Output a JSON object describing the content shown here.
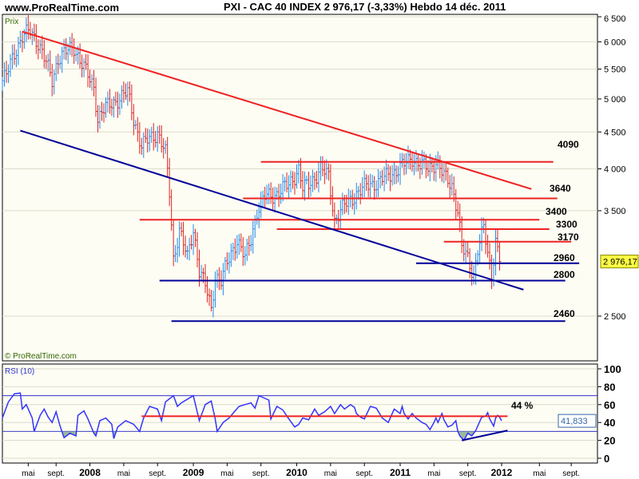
{
  "header": {
    "site": "www.ProRealTime.com",
    "title": "PXI - CAC 40 INDEX    2 976,17 (-3,33%)    Hebdo  14 déc. 2011"
  },
  "chart_data": [
    {
      "type": "line",
      "title": "Prix",
      "scale": "log",
      "ylim": [
        2100,
        6600
      ],
      "yticks": [
        {
          "v": 6500,
          "label": "6 500"
        },
        {
          "v": 6000,
          "label": "6 000"
        },
        {
          "v": 5500,
          "label": "5 500"
        },
        {
          "v": 5000,
          "label": "5 000"
        },
        {
          "v": 4500,
          "label": "4 500"
        },
        {
          "v": 4000,
          "label": "4 000"
        },
        {
          "v": 3500,
          "label": "3 500"
        },
        {
          "v": 2500,
          "label": "2 500"
        }
      ],
      "x_unit": "weeks from first bar",
      "price_path": [
        [
          0,
          5300
        ],
        [
          2,
          5380
        ],
        [
          6,
          5800
        ],
        [
          10,
          6100
        ],
        [
          14,
          6200
        ],
        [
          18,
          6000
        ],
        [
          22,
          5600
        ],
        [
          25,
          5300
        ],
        [
          28,
          5700
        ],
        [
          32,
          5800
        ],
        [
          36,
          5900
        ],
        [
          40,
          5600
        ],
        [
          44,
          5300
        ],
        [
          46,
          5200
        ],
        [
          48,
          4700
        ],
        [
          50,
          4800
        ],
        [
          54,
          4900
        ],
        [
          58,
          5000
        ],
        [
          63,
          5100
        ],
        [
          66,
          4700
        ],
        [
          70,
          4300
        ],
        [
          74,
          4400
        ],
        [
          78,
          4500
        ],
        [
          82,
          4200
        ],
        [
          84,
          3700
        ],
        [
          86,
          3000
        ],
        [
          89,
          3300
        ],
        [
          93,
          3000
        ],
        [
          96,
          3300
        ],
        [
          99,
          2900
        ],
        [
          102,
          2750
        ],
        [
          105,
          2550
        ],
        [
          107,
          2850
        ],
        [
          110,
          2800
        ],
        [
          114,
          3000
        ],
        [
          118,
          3200
        ],
        [
          122,
          3000
        ],
        [
          125,
          3200
        ],
        [
          128,
          3500
        ],
        [
          132,
          3650
        ],
        [
          138,
          3700
        ],
        [
          144,
          3800
        ],
        [
          149,
          4000
        ],
        [
          151,
          3750
        ],
        [
          154,
          3800
        ],
        [
          160,
          4000
        ],
        [
          164,
          3900
        ],
        [
          167,
          3400
        ],
        [
          170,
          3500
        ],
        [
          174,
          3600
        ],
        [
          178,
          3700
        ],
        [
          184,
          3800
        ],
        [
          190,
          3850
        ],
        [
          196,
          3950
        ],
        [
          202,
          4050
        ],
        [
          206,
          4150
        ],
        [
          210,
          4050
        ],
        [
          214,
          4000
        ],
        [
          218,
          4100
        ],
        [
          222,
          3900
        ],
        [
          226,
          3800
        ],
        [
          229,
          3500
        ],
        [
          231,
          3100
        ],
        [
          234,
          3000
        ],
        [
          237,
          2850
        ],
        [
          239,
          3100
        ],
        [
          242,
          3300
        ],
        [
          244,
          3050
        ],
        [
          246,
          2850
        ],
        [
          248,
          3200
        ],
        [
          250,
          2976
        ]
      ],
      "last_value": "2 976,17",
      "levels": [
        {
          "v": 4090,
          "label": "4090",
          "color": "#ee2222",
          "from": 130,
          "to": 277
        },
        {
          "v": 3640,
          "label": "3640",
          "color": "#ee2222",
          "from": 121,
          "to": 279
        },
        {
          "v": 3400,
          "label": "3400",
          "color": "#ee2222",
          "from": 69,
          "to": 270
        },
        {
          "v": 3300,
          "label": "3300",
          "color": "#ee2222",
          "from": 138,
          "to": 275
        },
        {
          "v": 3170,
          "label": "3170",
          "color": "#ee2222",
          "from": 222,
          "to": 286
        },
        {
          "v": 2960,
          "label": "2960",
          "color": "#000099",
          "from": 208,
          "to": 290
        },
        {
          "v": 2800,
          "label": "2800",
          "color": "#000099",
          "from": 79,
          "to": 283
        },
        {
          "v": 2460,
          "label": "2460",
          "color": "#000099",
          "from": 85,
          "to": 283
        }
      ],
      "trendlines": [
        {
          "color": "#ee2222",
          "from": [
            10,
            6200
          ],
          "to": [
            266,
            3750
          ]
        },
        {
          "color": "#000099",
          "from": [
            9,
            4520
          ],
          "to": [
            262,
            2720
          ]
        }
      ],
      "copyright": "© ProRealTime.com"
    },
    {
      "type": "line",
      "title": "RSI (10)",
      "ylim": [
        0,
        100
      ],
      "yticks": [
        {
          "v": 100,
          "label": "100"
        },
        {
          "v": 80,
          "label": "80"
        },
        {
          "v": 60,
          "label": "60"
        },
        {
          "v": 40,
          "label": "40"
        },
        {
          "v": 20,
          "label": "20"
        },
        {
          "v": 0,
          "label": "0"
        }
      ],
      "bands": [
        70,
        30
      ],
      "values": [
        [
          0,
          45
        ],
        [
          3,
          63
        ],
        [
          6,
          72
        ],
        [
          9,
          73
        ],
        [
          10,
          55
        ],
        [
          12,
          60
        ],
        [
          15,
          45
        ],
        [
          16,
          30
        ],
        [
          19,
          48
        ],
        [
          21,
          55
        ],
        [
          23,
          46
        ],
        [
          25,
          40
        ],
        [
          27,
          52
        ],
        [
          29,
          36
        ],
        [
          31,
          23
        ],
        [
          34,
          28
        ],
        [
          37,
          25
        ],
        [
          38,
          48
        ],
        [
          41,
          53
        ],
        [
          43,
          44
        ],
        [
          46,
          28
        ],
        [
          47,
          25
        ],
        [
          49,
          42
        ],
        [
          52,
          45
        ],
        [
          55,
          38
        ],
        [
          56,
          22
        ],
        [
          58,
          35
        ],
        [
          62,
          42
        ],
        [
          66,
          38
        ],
        [
          69,
          30
        ],
        [
          71,
          45
        ],
        [
          74,
          58
        ],
        [
          78,
          55
        ],
        [
          80,
          42
        ],
        [
          82,
          63
        ],
        [
          86,
          70
        ],
        [
          88,
          58
        ],
        [
          90,
          62
        ],
        [
          93,
          66
        ],
        [
          96,
          70
        ],
        [
          99,
          42
        ],
        [
          102,
          60
        ],
        [
          105,
          64
        ],
        [
          107,
          44
        ],
        [
          108,
          30
        ],
        [
          111,
          40
        ],
        [
          114,
          45
        ],
        [
          117,
          53
        ],
        [
          119,
          58
        ],
        [
          122,
          60
        ],
        [
          125,
          62
        ],
        [
          127,
          56
        ],
        [
          129,
          70
        ],
        [
          134,
          65
        ],
        [
          135,
          44
        ],
        [
          138,
          58
        ],
        [
          141,
          54
        ],
        [
          144,
          44
        ],
        [
          147,
          35
        ],
        [
          149,
          38
        ],
        [
          151,
          45
        ],
        [
          154,
          43
        ],
        [
          157,
          55
        ],
        [
          159,
          48
        ],
        [
          162,
          52
        ],
        [
          165,
          58
        ],
        [
          167,
          50
        ],
        [
          170,
          60
        ],
        [
          172,
          55
        ],
        [
          175,
          60
        ],
        [
          177,
          57
        ],
        [
          178,
          50
        ],
        [
          180,
          46
        ],
        [
          182,
          44
        ],
        [
          185,
          58
        ],
        [
          188,
          56
        ],
        [
          191,
          45
        ],
        [
          194,
          40
        ],
        [
          197,
          55
        ],
        [
          200,
          50
        ],
        [
          201,
          58
        ],
        [
          202,
          50
        ],
        [
          204,
          44
        ],
        [
          206,
          50
        ],
        [
          208,
          45
        ],
        [
          211,
          40
        ],
        [
          213,
          38
        ],
        [
          215,
          32
        ],
        [
          217,
          40
        ],
        [
          218,
          45
        ],
        [
          219,
          40
        ],
        [
          221,
          50
        ],
        [
          222,
          43
        ],
        [
          224,
          35
        ],
        [
          226,
          37
        ],
        [
          228,
          42
        ],
        [
          229,
          30
        ],
        [
          230,
          25
        ],
        [
          232,
          20
        ],
        [
          234,
          28
        ],
        [
          236,
          25
        ],
        [
          238,
          31
        ],
        [
          240,
          41
        ],
        [
          241,
          46
        ],
        [
          243,
          47
        ],
        [
          244,
          51
        ],
        [
          245,
          44
        ],
        [
          246,
          40
        ],
        [
          247,
          36
        ],
        [
          248,
          45
        ],
        [
          249,
          48
        ],
        [
          250,
          46
        ],
        [
          251,
          42
        ]
      ],
      "last_value": "41,833",
      "level": {
        "v": 47,
        "from": 70,
        "to": 254,
        "label": "44 %"
      },
      "support": {
        "from": [
          231,
          20
        ],
        "to": [
          254,
          31
        ]
      }
    },
    {
      "type": "axis",
      "x_ticks": [
        {
          "w": 13,
          "label": "mai",
          "bold": false
        },
        {
          "w": 27,
          "label": "sept.",
          "bold": false
        },
        {
          "w": 44,
          "label": "2008",
          "bold": true
        },
        {
          "w": 61,
          "label": "mai",
          "bold": false
        },
        {
          "w": 78,
          "label": "sept.",
          "bold": false
        },
        {
          "w": 96,
          "label": "2009",
          "bold": true
        },
        {
          "w": 113,
          "label": "mai",
          "bold": false
        },
        {
          "w": 130,
          "label": "sept.",
          "bold": false
        },
        {
          "w": 148,
          "label": "2010",
          "bold": true
        },
        {
          "w": 165,
          "label": "mai",
          "bold": false
        },
        {
          "w": 182,
          "label": "sept.",
          "bold": false
        },
        {
          "w": 200,
          "label": "2011",
          "bold": true
        },
        {
          "w": 217,
          "label": "mai",
          "bold": false
        },
        {
          "w": 234,
          "label": "sept.",
          "bold": false
        },
        {
          "w": 251,
          "label": "2012",
          "bold": true
        },
        {
          "w": 270,
          "label": "mai",
          "bold": false
        },
        {
          "w": 286,
          "label": "sept.",
          "bold": false
        }
      ]
    }
  ]
}
